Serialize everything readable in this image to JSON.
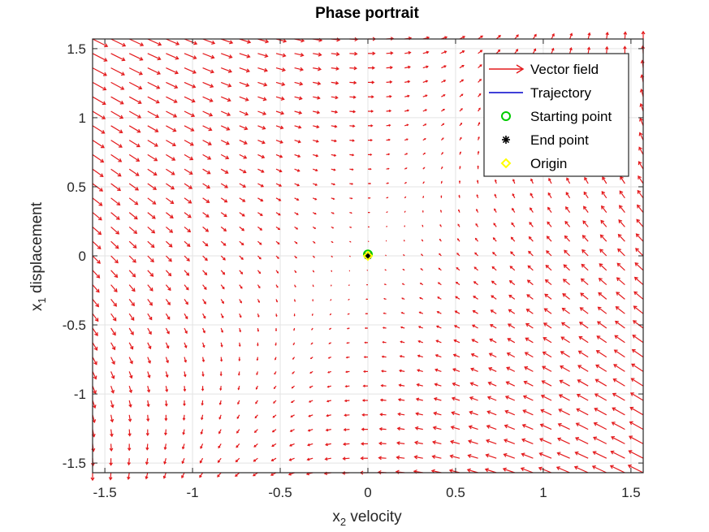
{
  "chart_data": {
    "type": "quiver",
    "title": "Phase portrait",
    "xlabel": {
      "main": "x",
      "sub": "2",
      "rest": " velocity"
    },
    "ylabel": {
      "main": "x",
      "sub": "1",
      "rest": " displacement"
    },
    "xlim": [
      -1.57,
      1.57
    ],
    "ylim": [
      -1.57,
      1.57
    ],
    "xticks": [
      -1.5,
      -1,
      -0.5,
      0,
      0.5,
      1,
      1.5
    ],
    "xtick_labels": [
      "-1.5",
      "-1",
      "-0.5",
      "0",
      "0.5",
      "1",
      "1.5"
    ],
    "yticks": [
      -1.5,
      -1,
      -0.5,
      0,
      0.5,
      1,
      1.5
    ],
    "ytick_labels": [
      "-1.5",
      "-1",
      "-0.5",
      "0",
      "0.5",
      "1",
      "1.5"
    ],
    "grid": true,
    "legend_location": "top-right",
    "vector_field": {
      "x_range": [
        -1.57,
        1.57
      ],
      "y_range": [
        -1.57,
        1.57
      ],
      "samples_x": 31,
      "samples_y": 31,
      "dx_formula": "x1 - x2",
      "dy_formula": "x2",
      "color": "#e41a1c"
    },
    "series": [
      {
        "name": "Vector field",
        "kind": "arrow",
        "color": "#e41a1c"
      },
      {
        "name": "Trajectory",
        "kind": "line",
        "color": "#0000cc",
        "x": [
          0.0
        ],
        "y": [
          0.0
        ]
      },
      {
        "name": "Starting point",
        "kind": "circle",
        "color": "#00cc00",
        "x": [
          0.0
        ],
        "y": [
          0.01
        ]
      },
      {
        "name": "End point",
        "kind": "asterisk",
        "color": "#000000",
        "x": [
          0.0
        ],
        "y": [
          0.0
        ]
      },
      {
        "name": "Origin",
        "kind": "diamond",
        "color": "#ffff00",
        "x": [
          0.0
        ],
        "y": [
          0.0
        ]
      }
    ]
  }
}
